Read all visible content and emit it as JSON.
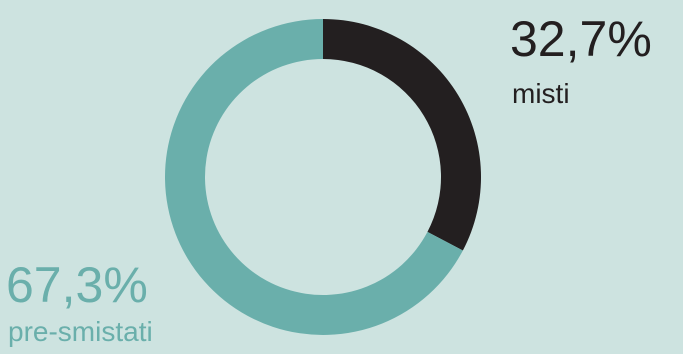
{
  "chart_data": {
    "type": "pie",
    "style": "donut",
    "start": "top",
    "direction": "clockwise",
    "slices": [
      {
        "label": "misti",
        "value": 32.7,
        "value_text": "32,7%",
        "color": "#231f20"
      },
      {
        "label": "pre-smistati",
        "value": 67.3,
        "value_text": "67,3%",
        "color": "#6aafab"
      }
    ],
    "legend": "none"
  },
  "colors": {
    "background": "#cde3e0"
  }
}
